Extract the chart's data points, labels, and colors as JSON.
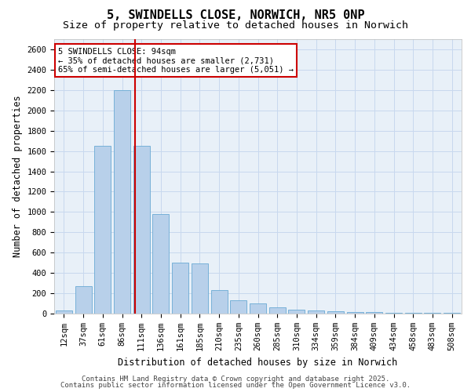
{
  "title": "5, SWINDELLS CLOSE, NORWICH, NR5 0NP",
  "subtitle": "Size of property relative to detached houses in Norwich",
  "xlabel": "Distribution of detached houses by size in Norwich",
  "ylabel": "Number of detached properties",
  "categories": [
    "12sqm",
    "37sqm",
    "61sqm",
    "86sqm",
    "111sqm",
    "136sqm",
    "161sqm",
    "185sqm",
    "210sqm",
    "235sqm",
    "260sqm",
    "285sqm",
    "310sqm",
    "334sqm",
    "359sqm",
    "384sqm",
    "409sqm",
    "434sqm",
    "458sqm",
    "483sqm",
    "508sqm"
  ],
  "values": [
    30,
    270,
    1650,
    2200,
    1650,
    980,
    500,
    490,
    230,
    135,
    100,
    60,
    40,
    30,
    25,
    18,
    12,
    10,
    7,
    5,
    5
  ],
  "bar_color": "#b8d0ea",
  "bar_edge_color": "#6aaad4",
  "grid_color": "#c8d8ee",
  "background_color": "#ffffff",
  "plot_bg_color": "#e8f0f8",
  "red_line_x": 3.65,
  "annotation_title": "5 SWINDELLS CLOSE: 94sqm",
  "annotation_line1": "← 35% of detached houses are smaller (2,731)",
  "annotation_line2": "65% of semi-detached houses are larger (5,051) →",
  "annotation_box_color": "#ffffff",
  "annotation_edge_color": "#cc0000",
  "red_line_color": "#cc0000",
  "footer_line1": "Contains HM Land Registry data © Crown copyright and database right 2025.",
  "footer_line2": "Contains public sector information licensed under the Open Government Licence v3.0.",
  "ylim": [
    0,
    2700
  ],
  "yticks": [
    0,
    200,
    400,
    600,
    800,
    1000,
    1200,
    1400,
    1600,
    1800,
    2000,
    2200,
    2400,
    2600
  ],
  "title_fontsize": 11,
  "subtitle_fontsize": 9.5,
  "axis_label_fontsize": 8.5,
  "tick_fontsize": 7.5,
  "annotation_fontsize": 7.5,
  "footer_fontsize": 6.5
}
